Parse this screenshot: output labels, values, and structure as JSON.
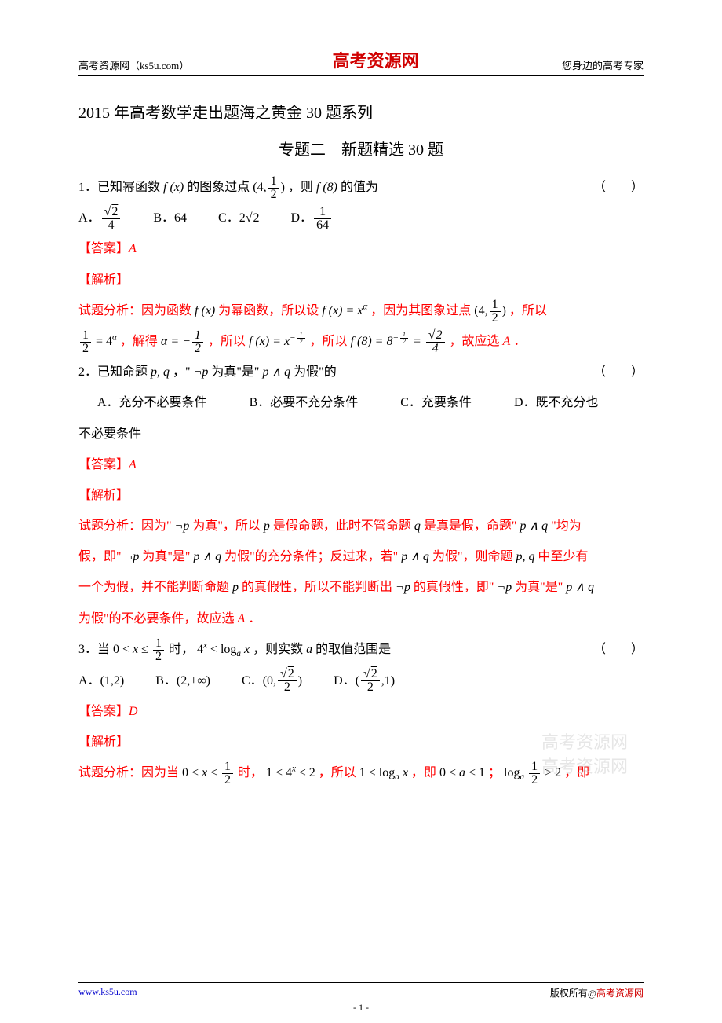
{
  "header": {
    "left": "高考资源网（ks5u.com）",
    "center": "高考资源网",
    "center_color": "#d00000",
    "right": "您身边的高考专家"
  },
  "title1": "2015 年高考数学走出题海之黄金 30 题系列",
  "title2": "专题二　新题精选 30 题",
  "q1": {
    "stem_pre": "1．已知幂函数 ",
    "stem_mid1": " 的图象过点 ",
    "stem_post": "，则 ",
    "stem_tail": " 的值为",
    "paren": "（　　）",
    "optA_label": "A．",
    "optB_label": "B．",
    "optB_val": "64",
    "optC_label": "C．",
    "optD_label": "D．",
    "ans_label": "【答案】",
    "ans_val": "A",
    "jiexi": "【解析】",
    "ana_pre": "试题分析：因为函数 ",
    "ana_t1": " 为幂函数，所以设 ",
    "ana_t2": "，因为其图象过点 ",
    "ana_t3": "，所以",
    "ana2_t1": "，解得 ",
    "ana2_t2": "，所以 ",
    "ana2_t3": "，所以 ",
    "ana2_t4": "，故应选 ",
    "ana2_end": "．"
  },
  "q2": {
    "stem_pre": "2．已知命题 ",
    "stem_mid": "，\"",
    "stem_mid2": " 为真\"是\" ",
    "stem_mid3": " 为假\"的",
    "paren": "（　　）",
    "optA": "A．充分不必要条件",
    "optB": "B．必要不充分条件",
    "optC": "C．充要条件",
    "optD": "D．既不充分也",
    "optD2": "不必要条件",
    "ans_label": "【答案】",
    "ans_val": "A",
    "jiexi": "【解析】",
    "ana1": "试题分析：因为\"",
    "ana1b": " 为真\"，所以 ",
    "ana1c": " 是假命题，此时不管命题 ",
    "ana1d": " 是真是假，命题\" ",
    "ana1e": " \"均为",
    "ana2": "假，即\"",
    "ana2b": " 为真\"是\" ",
    "ana2c": " 为假\"的充分条件；反过来，若\" ",
    "ana2d": " 为假\"，则命题 ",
    "ana2e": " 中至少有",
    "ana3": "一个为假，并不能判断命题 ",
    "ana3b": " 的真假性，所以不能判断出 ",
    "ana3c": " 的真假性，即\"",
    "ana3d": " 为真\"是\" ",
    "ana4": "为假\"的不必要条件，故应选 ",
    "ana4b": "．"
  },
  "q3": {
    "stem_pre": "3．当 ",
    "stem_mid": " 时，",
    "stem_post": "，则实数 ",
    "stem_tail": " 的取值范围是",
    "paren": "（　　）",
    "optA_label": "A．",
    "optA_val": "(1,2)",
    "optB_label": "B．",
    "optB_val": "(2,+∞)",
    "optC_label": "C．",
    "optD_label": "D．",
    "ans_label": "【答案】",
    "ans_val": "D",
    "jiexi": "【解析】",
    "ana_pre": "试题分析：因为当 ",
    "ana_t1": " 时，",
    "ana_t2": "，所以 ",
    "ana_t3": "，即 ",
    "ana_t4": "；",
    "ana_t5": "，即"
  },
  "watermark": {
    "line1": "高考资源网",
    "line2": "高考资源网"
  },
  "footer": {
    "left": "www.ks5u.com",
    "right_pre": "版权所有@",
    "right_brand": "高考资源网",
    "right_color": "#d00000",
    "pageno": "- 1 -"
  },
  "colors": {
    "red": "#ff0000",
    "blue": "#0000ff",
    "brand": "#d00000",
    "text": "#000000",
    "link": "#0000cc"
  }
}
